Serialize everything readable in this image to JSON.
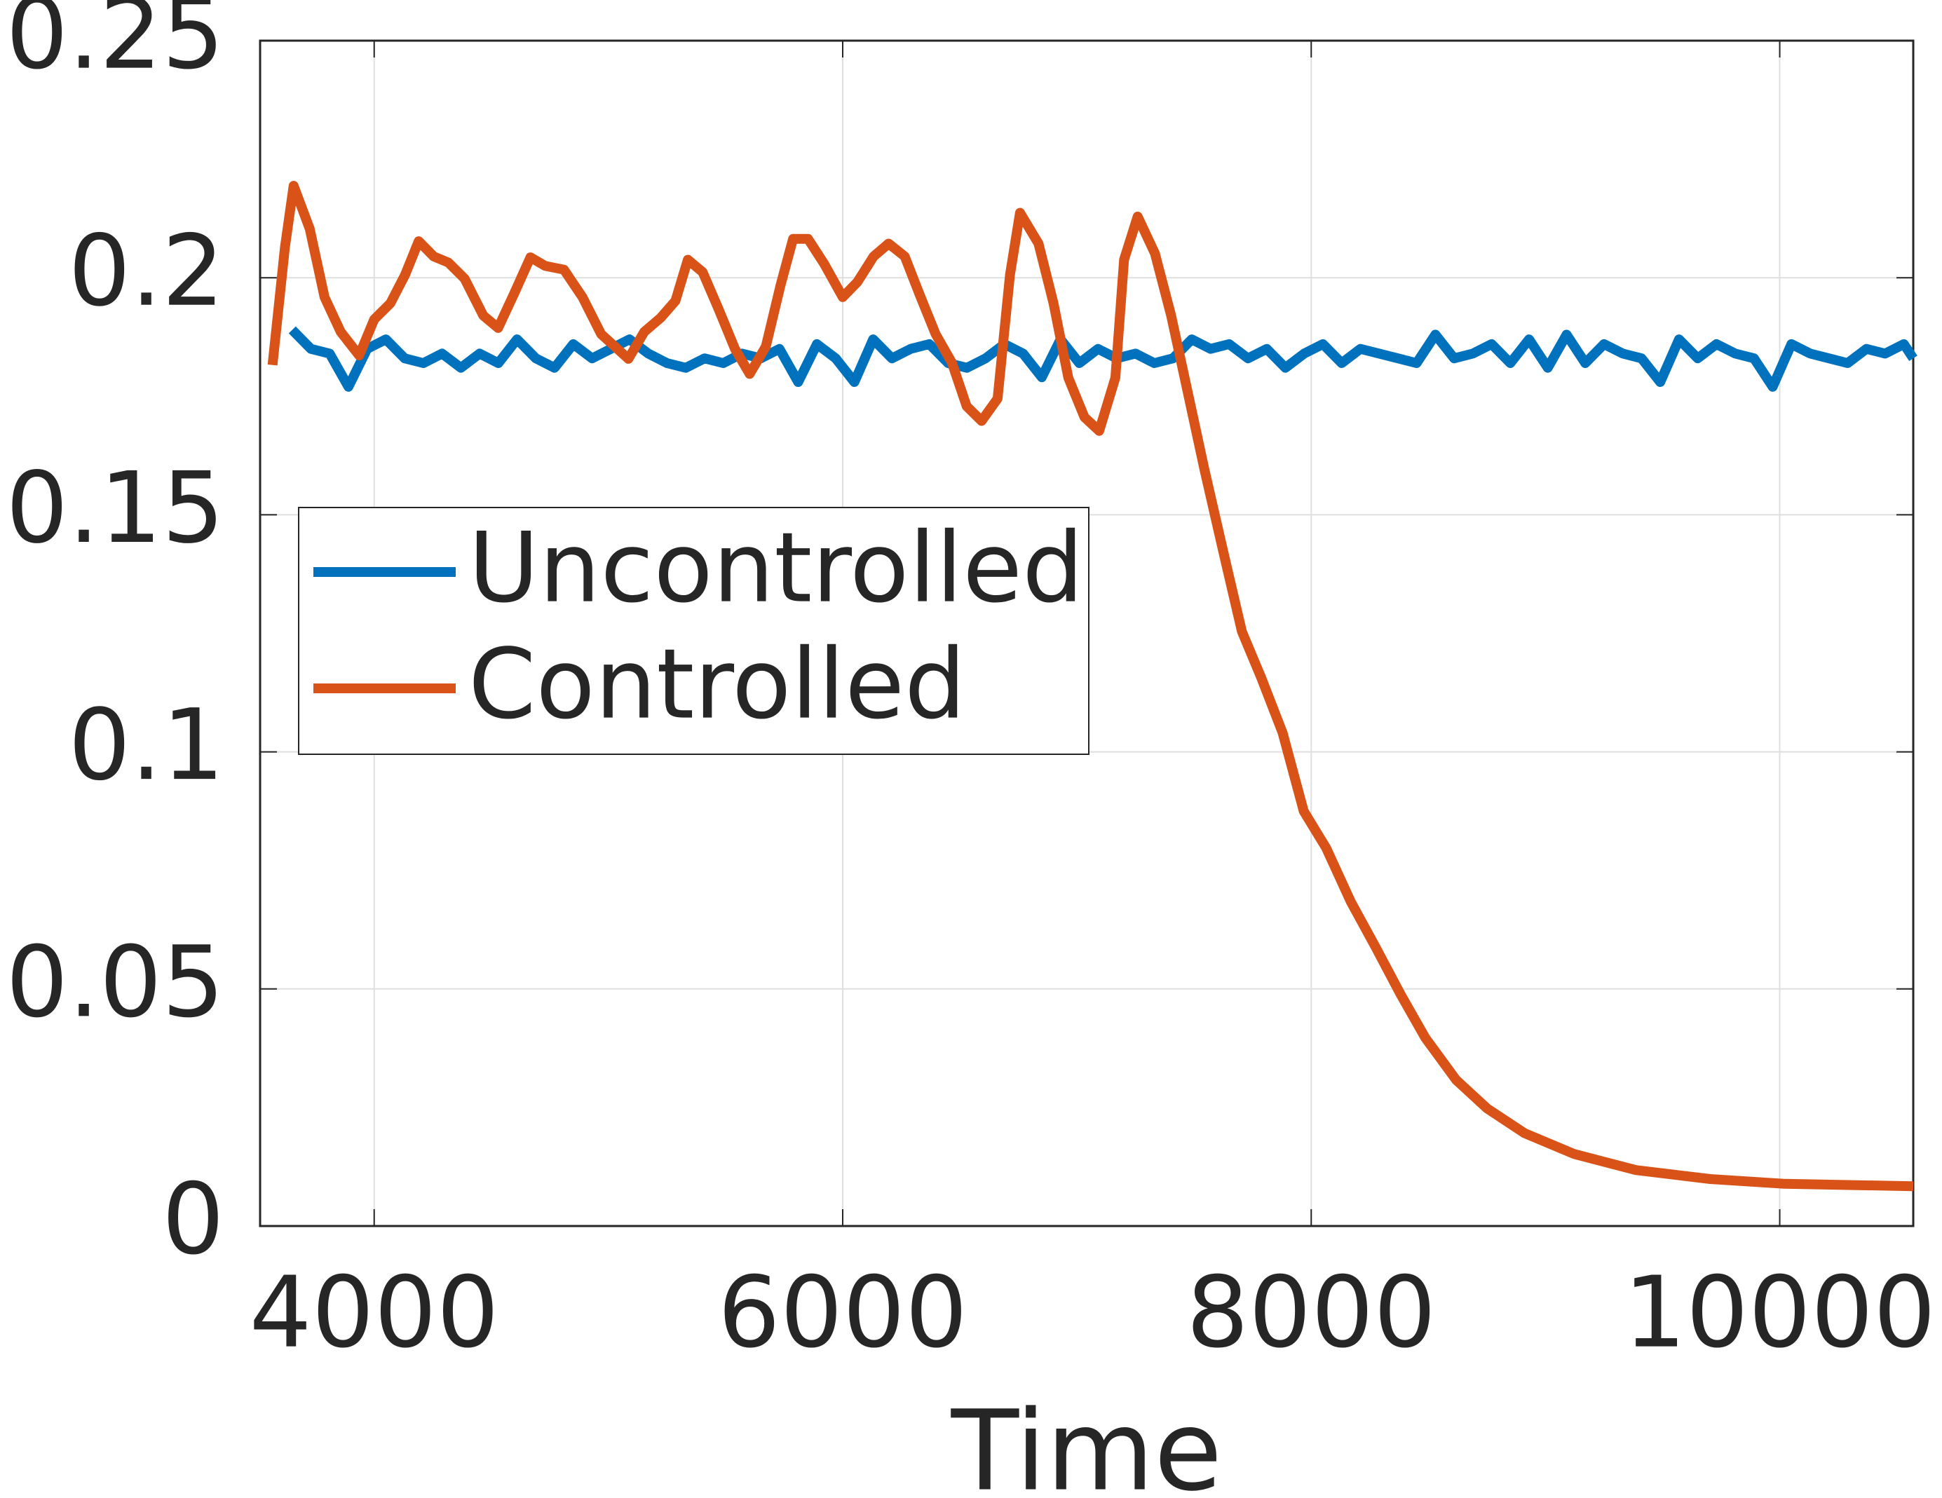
{
  "chart_data": {
    "type": "line",
    "xlabel": "Time",
    "xlim": [
      3513,
      10570
    ],
    "ylim": [
      0,
      0.25
    ],
    "xticks": [
      4000,
      6000,
      8000,
      10000
    ],
    "yticks": [
      0,
      0.05,
      0.1,
      0.15,
      0.2,
      0.25
    ],
    "grid": true,
    "legend": "center left",
    "series": [
      {
        "name": "Uncontrolled",
        "color": "#0072bd",
        "x": [
          3650,
          3730,
          3810,
          3890,
          3970,
          4050,
          4130,
          4210,
          4290,
          4370,
          4450,
          4530,
          4610,
          4690,
          4770,
          4850,
          4930,
          5010,
          5090,
          5170,
          5250,
          5330,
          5410,
          5490,
          5570,
          5650,
          5730,
          5810,
          5890,
          5970,
          6050,
          6130,
          6210,
          6290,
          6370,
          6450,
          6530,
          6610,
          6690,
          6770,
          6850,
          6930,
          7010,
          7090,
          7170,
          7250,
          7330,
          7410,
          7490,
          7570,
          7650,
          7730,
          7810,
          7890,
          7970,
          8050,
          8130,
          8210,
          8290,
          8370,
          8450,
          8530,
          8610,
          8690,
          8770,
          8850,
          8930,
          9010,
          9090,
          9170,
          9250,
          9330,
          9410,
          9490,
          9570,
          9650,
          9730,
          9810,
          9890,
          9970,
          10050,
          10130,
          10210,
          10290,
          10370,
          10450,
          10530,
          10570
        ],
        "values": [
          0.189,
          0.185,
          0.184,
          0.177,
          0.185,
          0.187,
          0.183,
          0.182,
          0.184,
          0.181,
          0.184,
          0.182,
          0.187,
          0.183,
          0.181,
          0.186,
          0.183,
          0.185,
          0.187,
          0.184,
          0.182,
          0.181,
          0.183,
          0.182,
          0.184,
          0.183,
          0.185,
          0.178,
          0.186,
          0.183,
          0.178,
          0.187,
          0.183,
          0.185,
          0.186,
          0.182,
          0.181,
          0.183,
          0.186,
          0.184,
          0.179,
          0.187,
          0.182,
          0.185,
          0.183,
          0.184,
          0.182,
          0.183,
          0.187,
          0.185,
          0.186,
          0.183,
          0.185,
          0.181,
          0.184,
          0.186,
          0.182,
          0.185,
          0.184,
          0.183,
          0.182,
          0.188,
          0.183,
          0.184,
          0.186,
          0.182,
          0.187,
          0.181,
          0.188,
          0.182,
          0.186,
          0.184,
          0.183,
          0.178,
          0.187,
          0.183,
          0.186,
          0.184,
          0.183,
          0.177,
          0.186,
          0.184,
          0.183,
          0.182,
          0.185,
          0.184,
          0.186,
          0.183
        ]
      },
      {
        "name": "Controlled",
        "color": "#d95319",
        "x": [
          3566,
          3619,
          3656,
          3725,
          3788,
          3857,
          3936,
          4000,
          4069,
          4132,
          4190,
          4254,
          4317,
          4386,
          4466,
          4529,
          4598,
          4667,
          4730,
          4810,
          4889,
          4969,
          5085,
          5153,
          5222,
          5286,
          5339,
          5402,
          5471,
          5540,
          5603,
          5672,
          5735,
          5788,
          5852,
          5920,
          6000,
          6063,
          6132,
          6196,
          6265,
          6328,
          6397,
          6466,
          6529,
          6593,
          6661,
          6714,
          6757,
          6836,
          6900,
          6963,
          7032,
          7095,
          7164,
          7201,
          7259,
          7333,
          7402,
          7471,
          7545,
          7630,
          7704,
          7788,
          7878,
          7968,
          8064,
          8169,
          8275,
          8381,
          8487,
          8619,
          8751,
          8910,
          9122,
          9386,
          9704,
          10021,
          10570
        ],
        "values": [
          0.1816,
          0.2064,
          0.2194,
          0.2103,
          0.1959,
          0.1886,
          0.1836,
          0.1912,
          0.1946,
          0.2006,
          0.2077,
          0.2045,
          0.2032,
          0.1998,
          0.192,
          0.1894,
          0.1967,
          0.2043,
          0.2025,
          0.2017,
          0.1959,
          0.1881,
          0.1829,
          0.1886,
          0.1915,
          0.1951,
          0.2038,
          0.2012,
          0.1933,
          0.185,
          0.1797,
          0.1855,
          0.1985,
          0.2082,
          0.2082,
          0.203,
          0.1959,
          0.1991,
          0.2045,
          0.2072,
          0.2045,
          0.1965,
          0.1881,
          0.1821,
          0.1729,
          0.1698,
          0.1745,
          0.2006,
          0.2137,
          0.2072,
          0.1946,
          0.1789,
          0.1706,
          0.1677,
          0.1789,
          0.2038,
          0.2129,
          0.2051,
          0.192,
          0.1763,
          0.1594,
          0.1411,
          0.1254,
          0.1155,
          0.104,
          0.0875,
          0.0797,
          0.0684,
          0.0588,
          0.0489,
          0.0397,
          0.0308,
          0.0248,
          0.0196,
          0.0152,
          0.0118,
          0.0099,
          0.0089,
          0.0084
        ]
      }
    ]
  }
}
